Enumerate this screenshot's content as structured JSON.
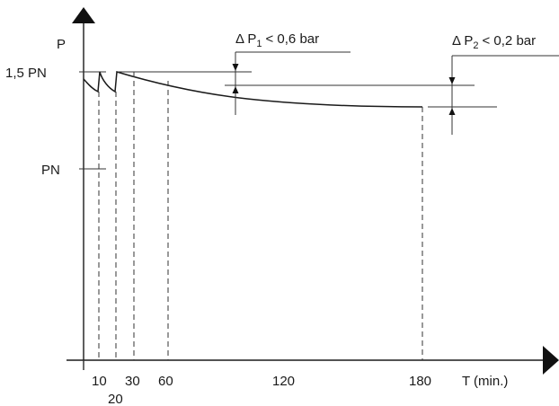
{
  "diagram": {
    "y_axis_label": "P",
    "x_axis_label": "T (min.)",
    "y_ticks": [
      {
        "label": "1,5 PN"
      },
      {
        "label": "PN"
      }
    ],
    "x_ticks": [
      "10",
      "20",
      "30",
      "60",
      "120",
      "180"
    ],
    "annotations": [
      {
        "prefix": "Δ P",
        "subscript": "1",
        "suffix": "< 0,6 bar"
      },
      {
        "prefix": "Δ P",
        "subscript": "2",
        "suffix": "< 0,2 bar"
      }
    ]
  }
}
